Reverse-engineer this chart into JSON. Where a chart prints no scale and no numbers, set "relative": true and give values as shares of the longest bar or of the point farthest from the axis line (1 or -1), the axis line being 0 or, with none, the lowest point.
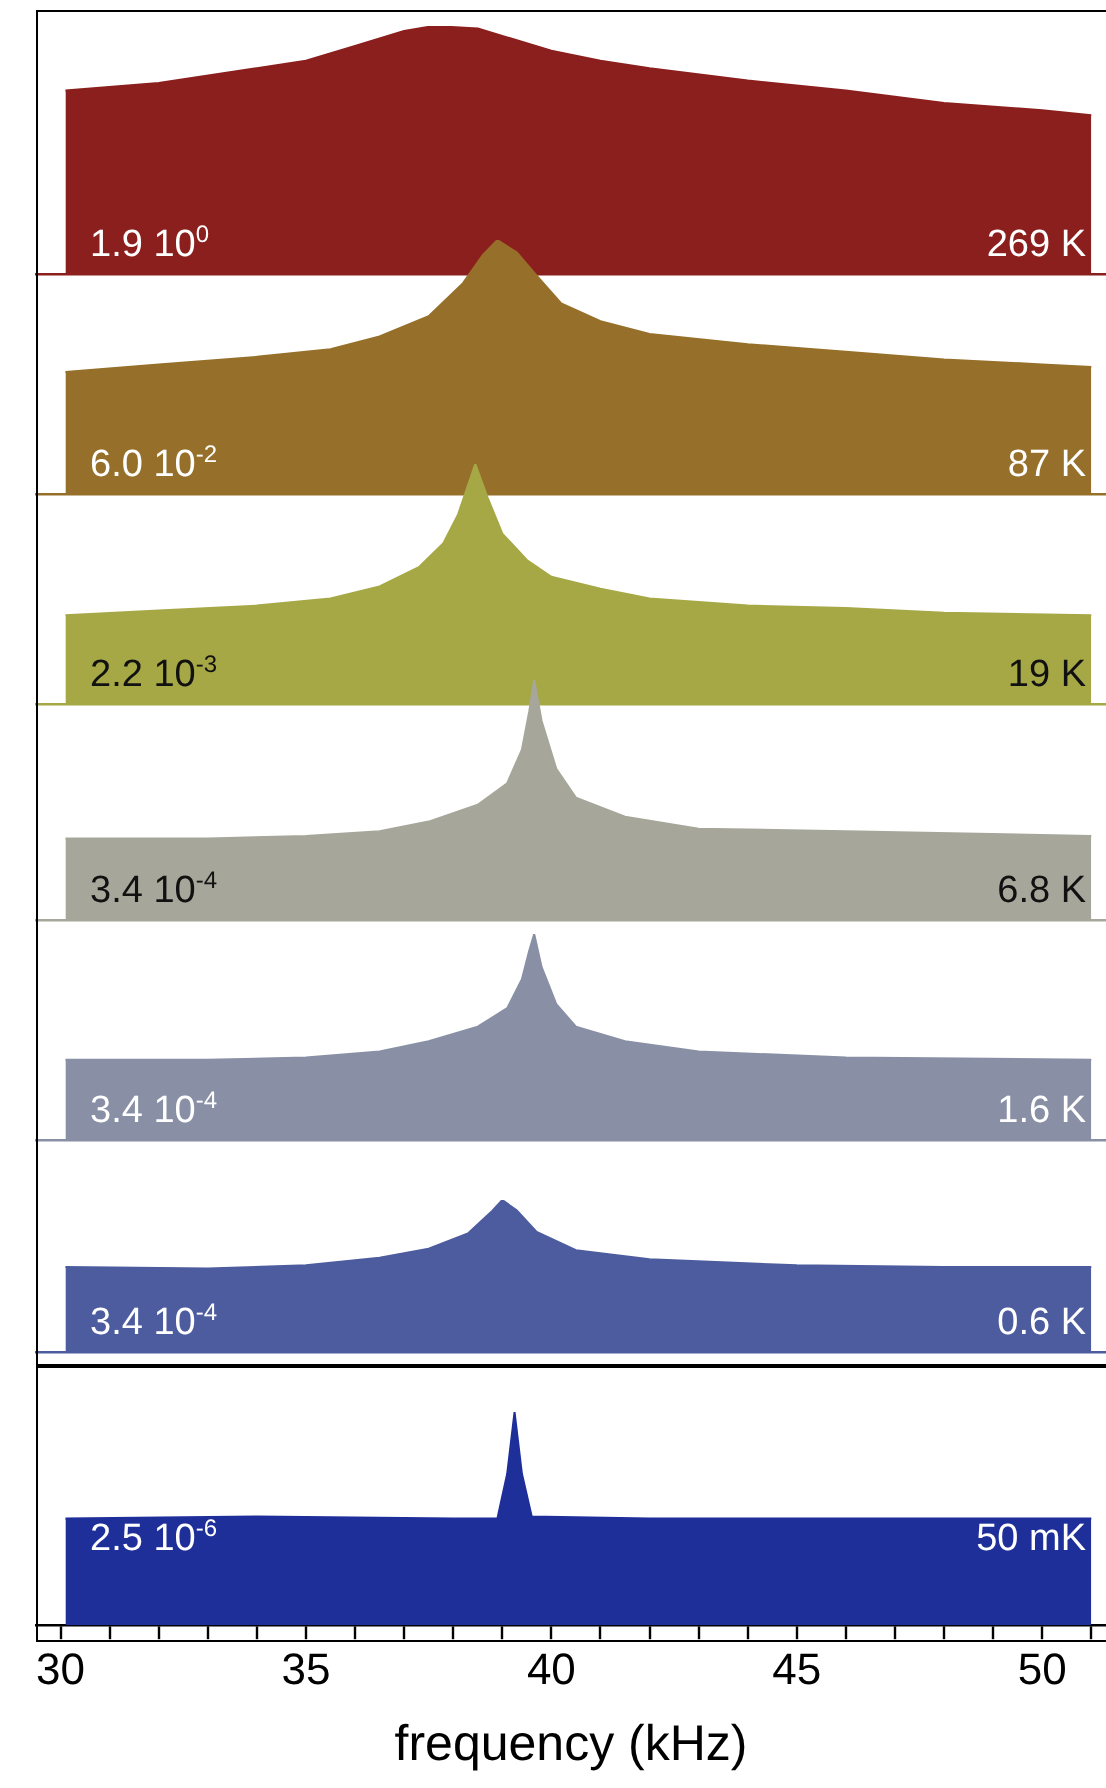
{
  "chart_data": [
    {
      "type": "area",
      "relative": true,
      "color": "#8b1f1d",
      "xlim": [
        29.5,
        51.3
      ],
      "tick_labels": false,
      "annotations": [
        "1.9 10$^{0}$",
        "269 K"
      ],
      "x": [
        30.1,
        32,
        34,
        35,
        36,
        37,
        37.6,
        38.5,
        39,
        40,
        41,
        42,
        44,
        46,
        48,
        50,
        51
      ],
      "values": [
        0.74,
        0.77,
        0.83,
        0.86,
        0.92,
        0.98,
        1,
        0.99,
        0.96,
        0.9,
        0.86,
        0.83,
        0.78,
        0.74,
        0.69,
        0.66,
        0.64
      ]
    },
    {
      "type": "area",
      "relative": true,
      "color": "#96702a",
      "xlim": [
        29.5,
        51.3
      ],
      "tick_labels": false,
      "annotations": [
        "6.0 10$^{-2}$",
        "87 K"
      ],
      "x": [
        30.1,
        32,
        34,
        35.5,
        36.5,
        37.5,
        38.2,
        38.6,
        38.9,
        39.3,
        39.7,
        40.2,
        41,
        42,
        44,
        46,
        48,
        50,
        51
      ],
      "values": [
        0.48,
        0.51,
        0.54,
        0.57,
        0.62,
        0.7,
        0.83,
        0.94,
        1,
        0.95,
        0.86,
        0.75,
        0.68,
        0.63,
        0.59,
        0.56,
        0.53,
        0.51,
        0.5
      ]
    },
    {
      "type": "area",
      "relative": true,
      "color": "#a6a846",
      "xlim": [
        29.5,
        51.3
      ],
      "tick_labels": false,
      "annotations": [
        "2.2 10$^{-3}$",
        "19 K"
      ],
      "x": [
        30.1,
        32,
        34,
        35.5,
        36.5,
        37.3,
        37.8,
        38.1,
        38.3,
        38.45,
        38.7,
        39,
        39.5,
        40,
        41,
        42,
        44,
        46,
        48,
        51
      ],
      "values": [
        0.37,
        0.39,
        0.41,
        0.44,
        0.49,
        0.57,
        0.67,
        0.79,
        0.91,
        1,
        0.86,
        0.71,
        0.6,
        0.53,
        0.48,
        0.44,
        0.41,
        0.4,
        0.38,
        0.37
      ]
    },
    {
      "type": "area",
      "relative": true,
      "color": "#a6a79a",
      "xlim": [
        29.5,
        51.3
      ],
      "tick_labels": false,
      "annotations": [
        "3.4 10$^{-4}$",
        "6.8 K"
      ],
      "x": [
        30.1,
        33,
        35,
        36.5,
        37.5,
        38.5,
        39.1,
        39.4,
        39.55,
        39.65,
        39.8,
        40.1,
        40.5,
        41.5,
        43,
        46,
        51
      ],
      "values": [
        0.34,
        0.34,
        0.35,
        0.37,
        0.41,
        0.48,
        0.57,
        0.71,
        0.87,
        1,
        0.83,
        0.63,
        0.51,
        0.43,
        0.38,
        0.37,
        0.35
      ]
    },
    {
      "type": "area",
      "relative": true,
      "color": "#8990a6",
      "xlim": [
        29.5,
        51.3
      ],
      "tick_labels": false,
      "annotations": [
        "3.4 10$^{-4}$",
        "1.6 K"
      ],
      "x": [
        30.1,
        33,
        35,
        36.5,
        37.5,
        38.5,
        39.1,
        39.4,
        39.55,
        39.65,
        39.8,
        40.1,
        40.5,
        41.5,
        43,
        46,
        51
      ],
      "values": [
        0.39,
        0.39,
        0.4,
        0.43,
        0.48,
        0.55,
        0.64,
        0.78,
        0.92,
        1,
        0.84,
        0.66,
        0.55,
        0.48,
        0.43,
        0.4,
        0.39
      ]
    },
    {
      "type": "area",
      "relative": true,
      "color": "#4c5c9e",
      "xlim": [
        29.5,
        51.3
      ],
      "tick_labels": false,
      "annotations": [
        "3.4 10$^{-4}$",
        "0.6 K"
      ],
      "x": [
        30.1,
        33,
        35,
        36.5,
        37.5,
        38.3,
        38.8,
        39,
        39.3,
        39.7,
        40.5,
        42,
        45,
        48,
        51
      ],
      "values": [
        0.56,
        0.55,
        0.57,
        0.62,
        0.68,
        0.78,
        0.93,
        1,
        0.93,
        0.79,
        0.67,
        0.61,
        0.57,
        0.56,
        0.56
      ]
    },
    {
      "type": "area",
      "relative": true,
      "color": "#1f2f9a",
      "xlim": [
        29.5,
        51.3
      ],
      "tick_labels": "x",
      "xlabel": "frequency (kHz)",
      "annotations": [
        "2.5 10$^{-6}$",
        "50 mK"
      ],
      "xticks": [
        30,
        {
          "value": 31,
          "label": null
        },
        {
          "value": 32,
          "label": null
        },
        {
          "value": 33,
          "label": null
        },
        {
          "value": 34,
          "label": null
        },
        35,
        {
          "value": 36,
          "label": null
        },
        {
          "value": 37,
          "label": null
        },
        {
          "value": 38,
          "label": null
        },
        {
          "value": 39,
          "label": null
        },
        40,
        {
          "value": 41,
          "label": null
        },
        {
          "value": 42,
          "label": null
        },
        {
          "value": 43,
          "label": null
        },
        {
          "value": 44,
          "label": null
        },
        45,
        {
          "value": 46,
          "label": null
        },
        {
          "value": 47,
          "label": null
        },
        {
          "value": 48,
          "label": null
        },
        {
          "value": 49,
          "label": null
        },
        50,
        {
          "value": 51,
          "label": null
        }
      ],
      "x": [
        30.1,
        34,
        38,
        38.9,
        39.1,
        39.25,
        39.4,
        39.6,
        42,
        46,
        51
      ],
      "values": [
        0.5,
        0.51,
        0.5,
        0.5,
        0.71,
        1,
        0.71,
        0.51,
        0.5,
        0.5,
        0.5
      ]
    }
  ]
}
